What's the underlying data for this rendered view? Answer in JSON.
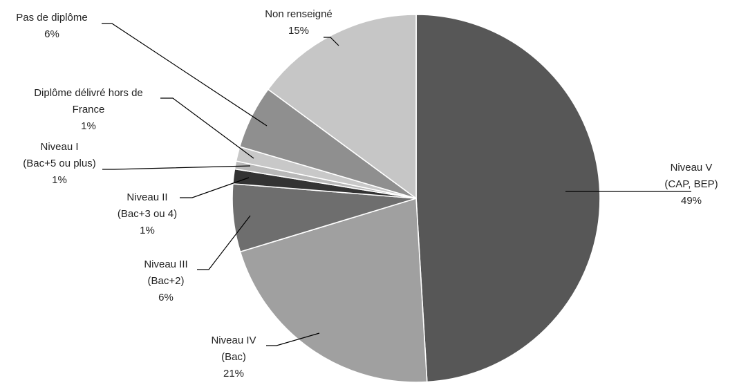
{
  "chart_data": {
    "type": "pie",
    "title": "",
    "slices": [
      {
        "label_lines": [
          "Niveau V",
          "(CAP, BEP)"
        ],
        "pct_text": "49%",
        "value": 49.4,
        "color": "#575757"
      },
      {
        "label_lines": [
          "Niveau IV",
          "(Bac)"
        ],
        "pct_text": "21%",
        "value": 21.4,
        "color": "#a0a0a0"
      },
      {
        "label_lines": [
          "Niveau III",
          "(Bac+2)"
        ],
        "pct_text": "6%",
        "value": 6.0,
        "color": "#6e6e6e"
      },
      {
        "label_lines": [
          "Niveau II",
          "(Bac+3 ou 4)"
        ],
        "pct_text": "1%",
        "value": 1.3,
        "color": "#333333"
      },
      {
        "label_lines": [
          "Niveau I",
          "(Bac+5 ou plus)"
        ],
        "pct_text": "1%",
        "value": 0.7,
        "color": "#b8b8b8"
      },
      {
        "label_lines": [
          "Diplôme délivré hors de",
          "France"
        ],
        "pct_text": "1%",
        "value": 1.3,
        "color": "#c8c8c8"
      },
      {
        "label_lines": [
          "Pas de diplôme"
        ],
        "pct_text": "6%",
        "value": 5.6,
        "color": "#8f8f8f"
      },
      {
        "label_lines": [
          "Non renseigné"
        ],
        "pct_text": "15%",
        "value": 15.0,
        "color": "#c6c6c6"
      }
    ]
  }
}
